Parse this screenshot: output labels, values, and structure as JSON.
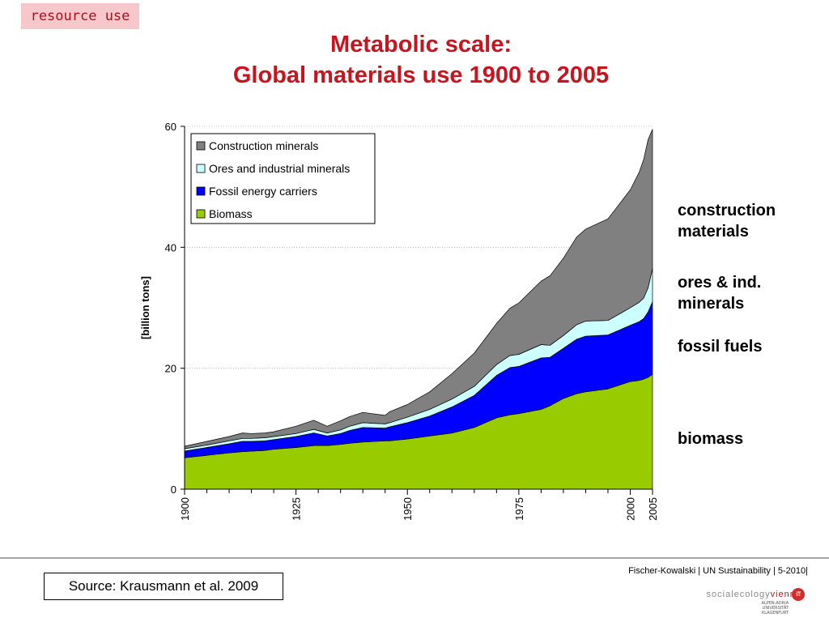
{
  "tag": "resource use",
  "title_line1": "Metabolic scale:",
  "title_line2": "Global materials use 1900 to 2005",
  "side_labels": [
    "construction\nmaterials",
    "ores & ind.\nminerals",
    "fossil fuels",
    "biomass"
  ],
  "footer": {
    "credit": "Fischer-Kowalski | UN Sustainability | 5-2010|",
    "source": "Source: Krausmann et al. 2009",
    "logo_text_a": "social",
    "logo_text_b": "ecology",
    "logo_text_c": "vienna",
    "logo_badge": "iff",
    "university": "ALPEN-ADRIA\nUNIVERSITÄT\nKLAGENFURT"
  },
  "chart_data": {
    "type": "area",
    "stacked": true,
    "ylabel": "[billion tons]",
    "ylim": [
      0,
      60
    ],
    "yticks": [
      0,
      20,
      40,
      60
    ],
    "xlim": [
      1900,
      2005
    ],
    "xtick_labels": [
      1900,
      1925,
      1950,
      1975,
      2000,
      2005
    ],
    "gridlines": "horizontal, dotted",
    "legend_position": "top-left",
    "x": [
      1900,
      1905,
      1910,
      1913,
      1915,
      1918,
      1920,
      1925,
      1929,
      1932,
      1935,
      1937,
      1940,
      1945,
      1946,
      1950,
      1955,
      1960,
      1965,
      1970,
      1973,
      1975,
      1980,
      1982,
      1985,
      1988,
      1990,
      1995,
      2000,
      2002,
      2003,
      2004,
      2005
    ],
    "series": [
      {
        "name": "Biomass",
        "color": "#99cc00",
        "values": [
          5.2,
          5.6,
          6.0,
          6.2,
          6.3,
          6.4,
          6.6,
          6.9,
          7.2,
          7.2,
          7.4,
          7.6,
          7.8,
          8.0,
          8.0,
          8.3,
          8.8,
          9.3,
          10.2,
          11.8,
          12.3,
          12.5,
          13.2,
          13.8,
          15.0,
          15.8,
          16.1,
          16.6,
          17.8,
          18.0,
          18.2,
          18.5,
          19.0
        ]
      },
      {
        "name": "Fossil energy carriers",
        "color": "#0000ff",
        "values": [
          1.1,
          1.3,
          1.5,
          1.7,
          1.6,
          1.6,
          1.6,
          1.8,
          2.1,
          1.6,
          1.8,
          2.1,
          2.4,
          2.1,
          2.3,
          2.7,
          3.3,
          4.3,
          5.3,
          7.0,
          7.8,
          7.8,
          8.5,
          8.0,
          8.3,
          9.0,
          9.2,
          8.9,
          9.3,
          9.7,
          10.0,
          10.8,
          12.0
        ]
      },
      {
        "name": "Ores and industrial minerals",
        "color": "#ccffff",
        "values": [
          0.4,
          0.4,
          0.5,
          0.5,
          0.5,
          0.5,
          0.5,
          0.5,
          0.6,
          0.5,
          0.6,
          0.7,
          0.8,
          0.7,
          0.7,
          0.9,
          1.1,
          1.3,
          1.5,
          1.8,
          2.0,
          2.0,
          2.2,
          2.0,
          2.1,
          2.4,
          2.5,
          2.4,
          2.9,
          3.2,
          3.4,
          4.0,
          5.5
        ]
      },
      {
        "name": "Construction minerals",
        "color": "#808080",
        "values": [
          0.4,
          0.6,
          0.7,
          0.9,
          0.8,
          0.8,
          0.8,
          1.2,
          1.5,
          1.1,
          1.5,
          1.6,
          1.7,
          1.4,
          1.8,
          2.1,
          2.9,
          4.2,
          5.5,
          6.8,
          7.8,
          8.5,
          10.5,
          11.5,
          12.8,
          14.5,
          15.2,
          16.8,
          19.5,
          21.5,
          22.9,
          24.5,
          23.0
        ]
      }
    ]
  }
}
